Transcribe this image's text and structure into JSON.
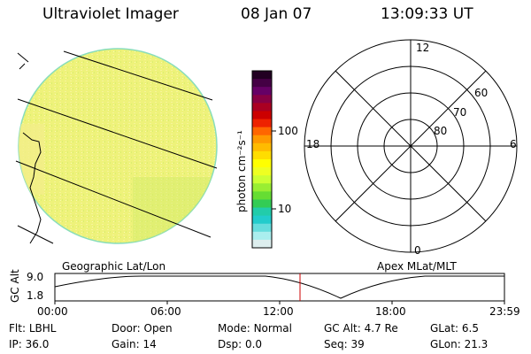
{
  "header": {
    "instrument": "Ultraviolet Imager",
    "date": "08 Jan 07",
    "time": "13:09:33 UT"
  },
  "image_panel": {
    "caption": "Geographic Lat/Lon"
  },
  "colorbar": {
    "unit_label": "photon cm⁻²s⁻¹",
    "ticks": [
      "100",
      "10"
    ],
    "colors": [
      "#220022",
      "#440044",
      "#660066",
      "#880044",
      "#aa0022",
      "#cc0000",
      "#ee2200",
      "#ff6600",
      "#ff9900",
      "#ffbb00",
      "#ffdd00",
      "#ffff00",
      "#eeff22",
      "#ccff33",
      "#99ee33",
      "#66dd33",
      "#33cc55",
      "#22ccaa",
      "#22cccc",
      "#66dddd",
      "#aaeeee",
      "#ddeeee"
    ]
  },
  "polar_panel": {
    "caption": "Apex MLat/MLT",
    "mlt_labels": {
      "top": "12",
      "bottom": "0",
      "left": "18",
      "right": "6"
    },
    "lat_labels": [
      "60",
      "70",
      "80"
    ]
  },
  "altitude_strip": {
    "ylabel": "GC Alt",
    "y_ticks": [
      "9.0",
      "1.8"
    ],
    "x_ticks": [
      "00:00",
      "06:00",
      "12:00",
      "18:00",
      "23:59"
    ]
  },
  "status": {
    "row1": [
      {
        "key": "Flt:",
        "value": "LBHL"
      },
      {
        "key": "Door:",
        "value": "Open"
      },
      {
        "key": "Mode:",
        "value": "Normal"
      },
      {
        "key": "GC Alt:",
        "value": "4.7 Re"
      },
      {
        "key": "GLat:",
        "value": "6.5"
      }
    ],
    "row2": [
      {
        "key": "IP:",
        "value": "36.0"
      },
      {
        "key": "Gain:",
        "value": "14"
      },
      {
        "key": "Dsp:",
        "value": "0.0"
      },
      {
        "key": "Seq:",
        "value": "39"
      },
      {
        "key": "GLon:",
        "value": "21.3"
      }
    ]
  }
}
